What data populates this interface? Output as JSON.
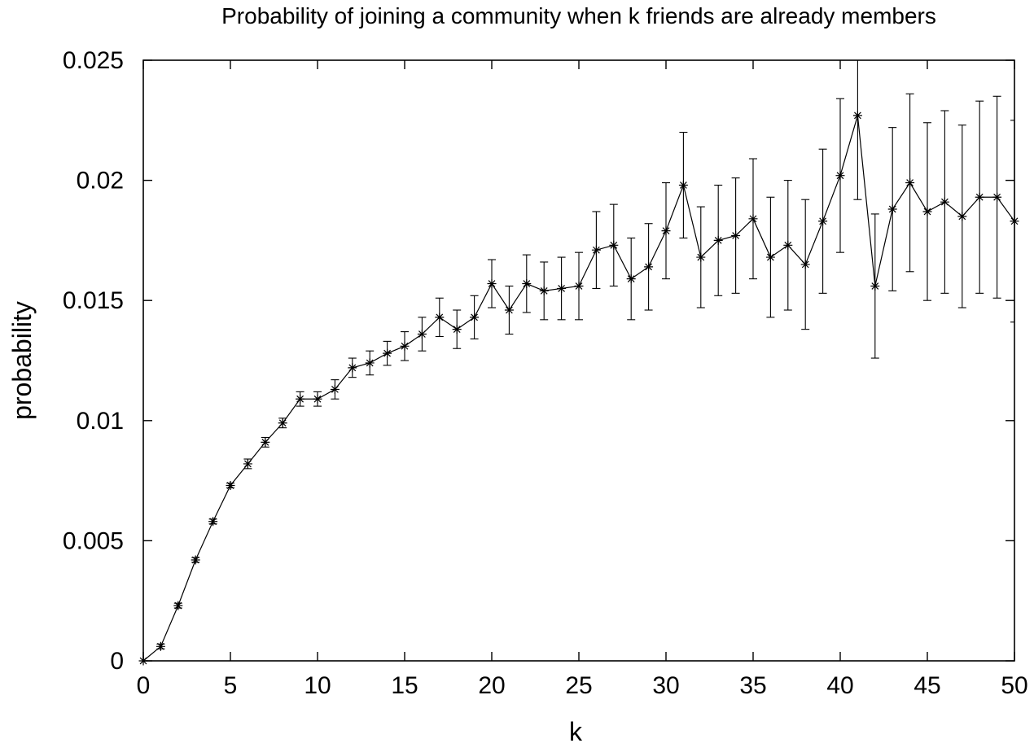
{
  "chart_data": {
    "type": "line",
    "title": "Probability of joining a community when k friends are already members",
    "xlabel": "k",
    "ylabel": "probability",
    "xlim": [
      0,
      50
    ],
    "ylim": [
      0,
      0.025
    ],
    "xticks": [
      0,
      5,
      10,
      15,
      20,
      25,
      30,
      35,
      40,
      45,
      50
    ],
    "xtick_labels": [
      "0",
      "5",
      "10",
      "15",
      "20",
      "25",
      "30",
      "35",
      "40",
      "45",
      "50"
    ],
    "yticks": [
      0,
      0.005,
      0.01,
      0.015,
      0.02,
      0.025
    ],
    "ytick_labels": [
      "0",
      "0.005",
      "0.01",
      "0.015",
      "0.02",
      "0.025"
    ],
    "grid": false,
    "legend": "none",
    "marker": "asterisk",
    "series": [
      {
        "x": [
          0,
          1,
          2,
          3,
          4,
          5,
          6,
          7,
          8,
          9,
          10,
          11,
          12,
          13,
          14,
          15,
          16,
          17,
          18,
          19,
          20,
          21,
          22,
          23,
          24,
          25,
          26,
          27,
          28,
          29,
          30,
          31,
          32,
          33,
          34,
          35,
          36,
          37,
          38,
          39,
          40,
          41,
          42,
          43,
          44,
          45,
          46,
          47,
          48,
          49,
          50
        ],
        "y": [
          0.0,
          0.0006,
          0.0023,
          0.0042,
          0.0058,
          0.0073,
          0.0082,
          0.0091,
          0.0099,
          0.0109,
          0.0109,
          0.0113,
          0.0122,
          0.0124,
          0.0128,
          0.0131,
          0.0136,
          0.0143,
          0.0138,
          0.0143,
          0.0157,
          0.0146,
          0.0157,
          0.0154,
          0.0155,
          0.0156,
          0.0171,
          0.0173,
          0.0159,
          0.0164,
          0.0179,
          0.0198,
          0.0168,
          0.0175,
          0.0177,
          0.0184,
          0.0168,
          0.0173,
          0.0165,
          0.0183,
          0.0202,
          0.0227,
          0.0156,
          0.0188,
          0.0199,
          0.0187,
          0.0191,
          0.0185,
          0.0193,
          0.0193,
          0.0183
        ],
        "err": [
          0.0,
          0.0001,
          0.0001,
          0.0001,
          0.0001,
          0.0001,
          0.0002,
          0.0002,
          0.0002,
          0.0003,
          0.0003,
          0.0004,
          0.0004,
          0.0005,
          0.0005,
          0.0006,
          0.0007,
          0.0008,
          0.0008,
          0.0009,
          0.001,
          0.001,
          0.0012,
          0.0012,
          0.0013,
          0.0014,
          0.0016,
          0.0017,
          0.0017,
          0.0018,
          0.002,
          0.0022,
          0.0021,
          0.0023,
          0.0024,
          0.0025,
          0.0025,
          0.0027,
          0.0027,
          0.003,
          0.0032,
          0.0035,
          0.003,
          0.0034,
          0.0037,
          0.0037,
          0.0038,
          0.0038,
          0.004,
          0.0042,
          0.0042
        ]
      }
    ]
  }
}
